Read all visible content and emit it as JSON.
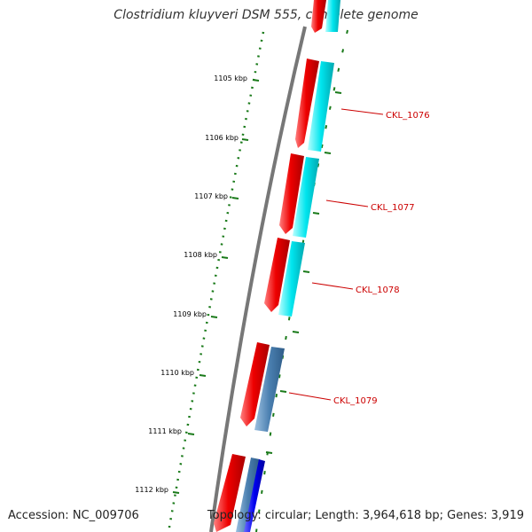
{
  "header": {
    "title": "Clostridium kluyveri DSM 555, complete genome"
  },
  "footer": {
    "accession": "Accession: NC_009706",
    "summary": "Topology: circular; Length: 3,964,618 bp; Genes: 3,919"
  },
  "colors": {
    "tick": "#1a7a1a",
    "backbone": "#777777",
    "gene_red": "#ee0000",
    "gene_cyan": "#00e5ee",
    "gene_steel": "#4a7fb0",
    "gene_blue": "#0000ee",
    "label": "#cc0000"
  },
  "scale_labels": [
    "1105 kbp",
    "1106 kbp",
    "1107 kbp",
    "1108 kbp",
    "1109 kbp",
    "1110 kbp",
    "1111 kbp",
    "1112 kbp"
  ],
  "gene_labels": [
    "CKL_1076",
    "CKL_1077",
    "CKL_1078",
    "CKL_1079"
  ]
}
